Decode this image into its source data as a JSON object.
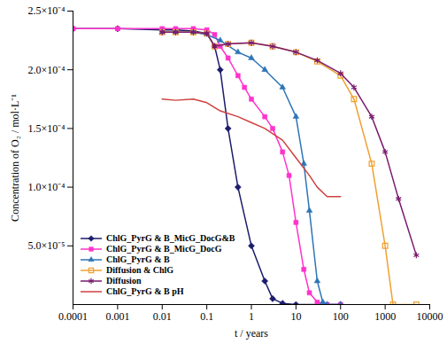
{
  "chart_data": {
    "type": "line",
    "x_label": "t / years",
    "y_label": "Concentration of O₂ / mol·L⁻¹",
    "log": "x",
    "grid": false,
    "legend": "lower left",
    "xlim": [
      0.0001,
      10000
    ],
    "xticks": [
      0.0001,
      0.001,
      0.01,
      0.1,
      1,
      10,
      100,
      1000,
      10000
    ],
    "ylim": [
      0,
      0.00025
    ],
    "yticks": [
      {
        "value": 5e-05,
        "label": "5.0×10⁻⁵"
      },
      {
        "value": 0.0001,
        "label": "1.0×10⁻⁴"
      },
      {
        "value": 0.00015,
        "label": "1.5×10⁻⁴"
      },
      {
        "value": 0.0002,
        "label": "2.0×10⁻⁴"
      },
      {
        "value": 0.00025,
        "label": "2.5×10⁻⁴"
      }
    ],
    "series": [
      {
        "name": "ChlG_PyrG & B_MicG_DocG&B",
        "color": "#1c1c6b",
        "marker": "diamond",
        "x": [
          0.0001,
          0.001,
          0.01,
          0.02,
          0.05,
          0.1,
          0.15,
          0.2,
          0.3,
          0.5,
          1,
          2,
          3,
          5,
          10,
          100
        ],
        "values": [
          0.000235,
          0.000235,
          0.000234,
          0.000234,
          0.000233,
          0.000231,
          0.00022,
          0.0002,
          0.00015,
          0.0001,
          5e-05,
          2e-05,
          5e-06,
          1e-06,
          0,
          0
        ]
      },
      {
        "name": "ChlG_PyrG & B_MicG_DocG",
        "color": "#ff33cc",
        "marker": "square",
        "x": [
          0.0001,
          0.001,
          0.01,
          0.02,
          0.05,
          0.1,
          0.15,
          0.2,
          0.3,
          0.5,
          0.7,
          1,
          2,
          3,
          5,
          7,
          10,
          15,
          20,
          30,
          50,
          100
        ],
        "values": [
          0.000235,
          0.000235,
          0.000235,
          0.000235,
          0.000235,
          0.000234,
          0.00023,
          0.00022,
          0.00021,
          0.000195,
          0.000185,
          0.000175,
          0.00016,
          0.00015,
          0.00013,
          0.00011,
          7e-05,
          3e-05,
          1e-05,
          2e-06,
          0,
          0
        ]
      },
      {
        "name": "ChlG_PyrG & B",
        "color": "#2e75b6",
        "marker": "triangle",
        "x": [
          0.01,
          0.02,
          0.05,
          0.1,
          0.2,
          0.5,
          1,
          2,
          5,
          10,
          15,
          20,
          30,
          40,
          50,
          100
        ],
        "values": [
          0.000232,
          0.000232,
          0.000232,
          0.00023,
          0.000225,
          0.000215,
          0.00021,
          0.0002,
          0.000185,
          0.00016,
          0.00012,
          8e-05,
          2e-05,
          2e-06,
          0,
          0
        ]
      },
      {
        "name": "Diffusion & ChlG",
        "color": "#f0a030",
        "marker": "square-open",
        "x": [
          0.01,
          0.02,
          0.05,
          0.1,
          0.15,
          0.3,
          1,
          3,
          10,
          30,
          100,
          200,
          500,
          1000,
          1500,
          5000
        ],
        "values": [
          0.000232,
          0.000232,
          0.000232,
          0.000231,
          0.00022,
          0.000222,
          0.000223,
          0.00022,
          0.000215,
          0.000207,
          0.000195,
          0.000175,
          0.00012,
          5e-05,
          0,
          0
        ]
      },
      {
        "name": "Diffusion",
        "color": "#7a1a6e",
        "marker": "star",
        "x": [
          0.01,
          0.02,
          0.05,
          0.1,
          0.15,
          0.3,
          1,
          3,
          10,
          30,
          100,
          200,
          500,
          1000,
          2000,
          5000
        ],
        "values": [
          0.000232,
          0.000232,
          0.000232,
          0.000231,
          0.00022,
          0.000222,
          0.000223,
          0.00022,
          0.000215,
          0.000208,
          0.000197,
          0.000185,
          0.00016,
          0.00013,
          9e-05,
          4.2e-05
        ]
      },
      {
        "name": "ChlG_PyrG & B pH",
        "color": "#d04040",
        "marker": "none",
        "x": [
          0.01,
          0.02,
          0.05,
          0.1,
          0.2,
          0.5,
          1,
          2,
          5,
          10,
          20,
          30,
          50,
          100
        ],
        "values": [
          0.000175,
          0.000174,
          0.000175,
          0.000172,
          0.000165,
          0.00016,
          0.000155,
          0.00015,
          0.00014,
          0.000125,
          0.00011,
          0.0001,
          9.2e-05,
          9.2e-05
        ]
      }
    ]
  }
}
